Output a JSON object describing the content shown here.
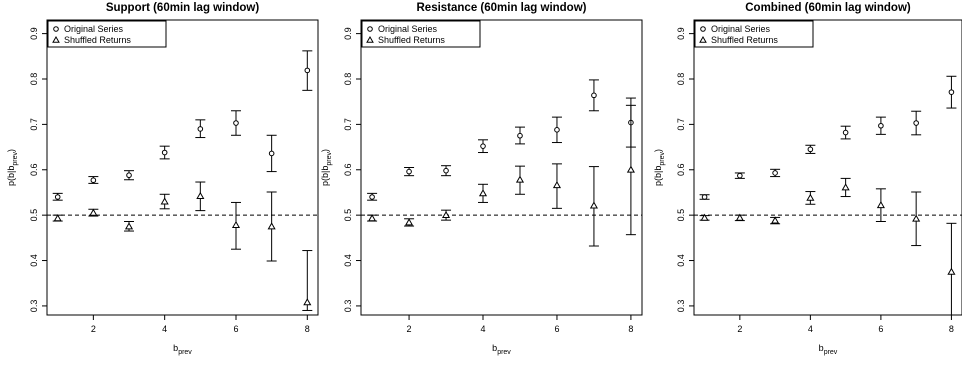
{
  "chart_data": [
    {
      "type": "scatter",
      "title": "Support (60min lag window)",
      "xlabel": "b",
      "xlabel_sub": "prev",
      "ylabel": "p(b|b",
      "ylabel_sub": "prev",
      "ylabel_end": ")",
      "xlim": [
        0.7,
        8.3
      ],
      "ylim": [
        0.28,
        0.93
      ],
      "xticks": [
        "2",
        "4",
        "6",
        "8"
      ],
      "yticks": [
        "0.3",
        "0.4",
        "0.5",
        "0.6",
        "0.7",
        "0.8",
        "0.9"
      ],
      "reference_line": 0.5,
      "legend_position": "top-left",
      "series": [
        {
          "name": "Original Series",
          "marker": "circle",
          "x": [
            1,
            2,
            3,
            4,
            5,
            6,
            7,
            8
          ],
          "y": [
            0.54,
            0.577,
            0.588,
            0.638,
            0.69,
            0.703,
            0.636,
            0.819
          ],
          "err_low": [
            0.533,
            0.57,
            0.578,
            0.624,
            0.671,
            0.676,
            0.596,
            0.775
          ],
          "err_high": [
            0.548,
            0.585,
            0.598,
            0.652,
            0.71,
            0.73,
            0.676,
            0.862
          ]
        },
        {
          "name": "Shuffled Returns",
          "marker": "triangle",
          "x": [
            1,
            2,
            3,
            4,
            5,
            6,
            7,
            8
          ],
          "y": [
            0.493,
            0.505,
            0.475,
            0.53,
            0.542,
            0.478,
            0.475,
            0.308
          ],
          "err_low": [
            0.487,
            0.498,
            0.465,
            0.514,
            0.51,
            0.425,
            0.399,
            0.29
          ],
          "err_high": [
            0.5,
            0.513,
            0.486,
            0.546,
            0.573,
            0.528,
            0.551,
            0.422
          ]
        }
      ]
    },
    {
      "type": "scatter",
      "title": "Resistance (60min lag window)",
      "xlabel": "b",
      "xlabel_sub": "prev",
      "ylabel": "p(b|b",
      "ylabel_sub": "prev",
      "ylabel_end": ")",
      "xlim": [
        0.7,
        8.3
      ],
      "ylim": [
        0.28,
        0.93
      ],
      "xticks": [
        "2",
        "4",
        "6",
        "8"
      ],
      "yticks": [
        "0.3",
        "0.4",
        "0.5",
        "0.6",
        "0.7",
        "0.8",
        "0.9"
      ],
      "reference_line": 0.5,
      "legend_position": "top-left",
      "series": [
        {
          "name": "Original Series",
          "marker": "circle",
          "x": [
            1,
            2,
            3,
            4,
            5,
            6,
            7,
            8
          ],
          "y": [
            0.54,
            0.596,
            0.598,
            0.652,
            0.675,
            0.688,
            0.764,
            0.704
          ],
          "err_low": [
            0.533,
            0.587,
            0.587,
            0.638,
            0.657,
            0.66,
            0.73,
            0.65
          ],
          "err_high": [
            0.548,
            0.605,
            0.609,
            0.666,
            0.694,
            0.716,
            0.798,
            0.758
          ]
        },
        {
          "name": "Shuffled Returns",
          "marker": "triangle",
          "x": [
            1,
            2,
            3,
            4,
            5,
            6,
            7,
            8
          ],
          "y": [
            0.493,
            0.484,
            0.5,
            0.548,
            0.578,
            0.566,
            0.521,
            0.6
          ],
          "err_low": [
            0.487,
            0.476,
            0.489,
            0.528,
            0.546,
            0.515,
            0.432,
            0.457
          ],
          "err_high": [
            0.5,
            0.492,
            0.511,
            0.568,
            0.608,
            0.613,
            0.607,
            0.742
          ]
        }
      ]
    },
    {
      "type": "scatter",
      "title": "Combined (60min lag window)",
      "xlabel": "b",
      "xlabel_sub": "prev",
      "ylabel": "p(b|b",
      "ylabel_sub": "prev",
      "ylabel_end": ")",
      "xlim": [
        0.7,
        8.3
      ],
      "ylim": [
        0.28,
        0.93
      ],
      "xticks": [
        "2",
        "4",
        "6",
        "8"
      ],
      "yticks": [
        "0.3",
        "0.4",
        "0.5",
        "0.6",
        "0.7",
        "0.8",
        "0.9"
      ],
      "reference_line": 0.5,
      "legend_position": "top-left",
      "series": [
        {
          "name": "Original Series",
          "marker": "circle",
          "x": [
            1,
            2,
            3,
            4,
            5,
            6,
            7,
            8
          ],
          "y": [
            0.54,
            0.587,
            0.593,
            0.645,
            0.682,
            0.697,
            0.703,
            0.771
          ],
          "err_low": [
            0.535,
            0.581,
            0.585,
            0.636,
            0.668,
            0.678,
            0.677,
            0.736
          ],
          "err_high": [
            0.545,
            0.593,
            0.601,
            0.654,
            0.696,
            0.716,
            0.729,
            0.806
          ]
        },
        {
          "name": "Shuffled Returns",
          "marker": "triangle",
          "x": [
            1,
            2,
            3,
            4,
            5,
            6,
            7,
            8
          ],
          "y": [
            0.494,
            0.494,
            0.488,
            0.538,
            0.561,
            0.522,
            0.492,
            0.375
          ],
          "err_low": [
            0.489,
            0.488,
            0.481,
            0.524,
            0.541,
            0.486,
            0.433,
            0.28
          ],
          "err_high": [
            0.499,
            0.5,
            0.495,
            0.552,
            0.581,
            0.558,
            0.551,
            0.482
          ]
        }
      ]
    }
  ]
}
